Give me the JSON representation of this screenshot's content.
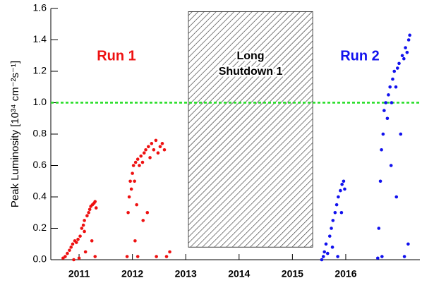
{
  "chart_data": {
    "type": "scatter",
    "y_label": "Peak Luminosity [10³⁴ cm⁻²s⁻¹]",
    "xlim": [
      2010.47,
      2017.39
    ],
    "ylim": [
      0,
      1.6
    ],
    "xticks": [
      2011,
      2012,
      2013,
      2014,
      2015,
      2016
    ],
    "yticks": [
      {
        "value": 0,
        "label": "0.0"
      },
      {
        "value": 0.2,
        "label": "0.2"
      },
      {
        "value": 0.4,
        "label": "0.4"
      },
      {
        "value": 0.6,
        "label": "0.6"
      },
      {
        "value": 0.8,
        "label": "0.8"
      },
      {
        "value": 1,
        "label": "1.0"
      },
      {
        "value": 1.2,
        "label": "1.2"
      },
      {
        "value": 1.4,
        "label": "1.4"
      },
      {
        "value": 1.6,
        "label": "1.6"
      }
    ],
    "reference_line": {
      "value": 1,
      "color": "#22dd22"
    },
    "shaded_region": {
      "x": [
        2013.05,
        2015.38
      ],
      "y": [
        0.08,
        1.58
      ],
      "label_lines": [
        "Long",
        "Shutdown 1"
      ]
    },
    "series": [
      {
        "name": "Run 1",
        "color": "#ee1111",
        "x": [
          2010.7,
          2010.74,
          2010.78,
          2010.82,
          2010.85,
          2010.88,
          2010.92,
          2010.95,
          2010.98,
          2011.02,
          2011.05,
          2011.08,
          2011.1,
          2011.12,
          2011.15,
          2011.18,
          2011.2,
          2011.22,
          2011.25,
          2011.28,
          2011.3,
          2011.32,
          2011.3,
          2011.0,
          2010.9,
          2011.1,
          2011.24,
          2011.9,
          2011.92,
          2011.94,
          2011.96,
          2011.98,
          2012.0,
          2012.02,
          2012.04,
          2012.06,
          2012.08,
          2012.1,
          2012.13,
          2012.16,
          2012.19,
          2012.22,
          2012.25,
          2012.28,
          2012.3,
          2012.33,
          2012.36,
          2012.4,
          2012.44,
          2012.48,
          2012.52,
          2012.56,
          2012.6,
          2012.64,
          2012.7,
          2012.1,
          2012.45,
          2012.2,
          2012.05
        ],
        "values": [
          0.01,
          0.02,
          0.04,
          0.06,
          0.08,
          0.1,
          0.12,
          0.11,
          0.13,
          0.15,
          0.2,
          0.22,
          0.25,
          0.05,
          0.28,
          0.3,
          0.32,
          0.34,
          0.35,
          0.36,
          0.37,
          0.33,
          0.02,
          0.01,
          0,
          0.18,
          0.12,
          0.02,
          0.3,
          0.4,
          0.5,
          0.45,
          0.55,
          0.6,
          0.5,
          0.62,
          0.35,
          0.64,
          0.6,
          0.66,
          0.62,
          0.68,
          0.7,
          0.3,
          0.72,
          0.65,
          0.74,
          0.7,
          0.76,
          0.68,
          0.72,
          0.74,
          0.7,
          0.02,
          0.05,
          0.02,
          0.02,
          0.25,
          0.12
        ]
      },
      {
        "name": "Run 2",
        "color": "#1111ee",
        "x": [
          2015.55,
          2015.58,
          2015.6,
          2015.63,
          2015.66,
          2015.7,
          2015.73,
          2015.76,
          2015.8,
          2015.83,
          2015.86,
          2015.9,
          2015.93,
          2015.96,
          2015.98,
          2015.85,
          2015.75,
          2015.92,
          2016.6,
          2016.62,
          2016.65,
          2016.67,
          2016.7,
          2016.72,
          2016.75,
          2016.78,
          2016.8,
          2016.83,
          2016.86,
          2016.88,
          2016.91,
          2016.94,
          2016.97,
          2017.0,
          2017.03,
          2017.06,
          2017.09,
          2017.12,
          2017.15,
          2017.18,
          2017.2,
          2017.1,
          2016.95,
          2016.85,
          2017.17,
          2016.68
        ],
        "values": [
          0,
          0.02,
          0.05,
          0.1,
          0.04,
          0.15,
          0.2,
          0.25,
          0.3,
          0.35,
          0.4,
          0.44,
          0.48,
          0.5,
          0.45,
          0.02,
          0.08,
          0.3,
          0.01,
          0.2,
          0.5,
          0.7,
          0.8,
          0.95,
          1,
          0.9,
          1.05,
          1.1,
          1,
          1.15,
          1.2,
          1.1,
          1.22,
          1.25,
          0.8,
          1.3,
          1.28,
          1.35,
          1.32,
          1.4,
          1.43,
          0.02,
          0.4,
          0.6,
          0.1,
          0.02
        ]
      }
    ]
  }
}
